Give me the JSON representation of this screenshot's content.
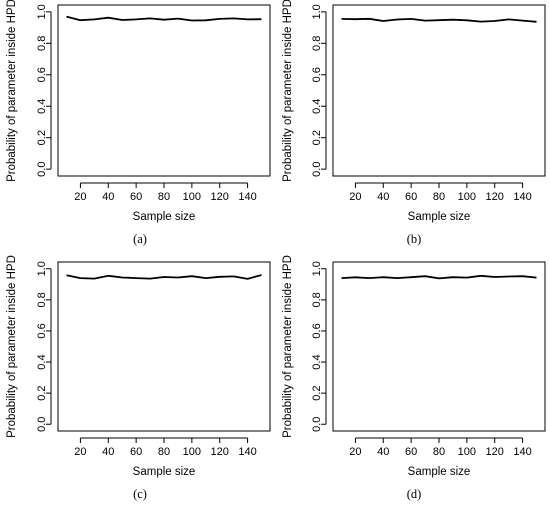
{
  "panels": [
    {
      "caption": "(a)",
      "chart_data": {
        "type": "line",
        "x": [
          10,
          20,
          30,
          40,
          50,
          60,
          70,
          80,
          90,
          100,
          110,
          120,
          130,
          140,
          150
        ],
        "series": [
          {
            "values": [
              0.97,
              0.947,
              0.952,
              0.963,
              0.948,
              0.952,
              0.958,
              0.95,
              0.957,
              0.945,
              0.946,
              0.955,
              0.958,
              0.952,
              0.953
            ]
          }
        ],
        "xlabel": "Sample size",
        "ylabel": "Probability of parameter inside HPD",
        "xticks": [
          20,
          40,
          60,
          80,
          100,
          120,
          140
        ],
        "yticks": [
          "0.0",
          "0.2",
          "0.4",
          "0.6",
          "0.8",
          "1.0"
        ],
        "xlim": [
          10,
          150
        ],
        "ylim": [
          0,
          1
        ],
        "grid": false
      }
    },
    {
      "caption": "(b)",
      "chart_data": {
        "type": "line",
        "x": [
          10,
          20,
          30,
          40,
          50,
          60,
          70,
          80,
          90,
          100,
          110,
          120,
          130,
          140,
          150
        ],
        "series": [
          {
            "values": [
              0.955,
              0.953,
              0.956,
              0.942,
              0.951,
              0.955,
              0.944,
              0.947,
              0.95,
              0.946,
              0.938,
              0.942,
              0.952,
              0.944,
              0.937
            ]
          }
        ],
        "xlabel": "Sample size",
        "ylabel": "Probability of parameter inside HPD",
        "xticks": [
          20,
          40,
          60,
          80,
          100,
          120,
          140
        ],
        "yticks": [
          "0.0",
          "0.2",
          "0.4",
          "0.6",
          "0.8",
          "1.0"
        ],
        "xlim": [
          10,
          150
        ],
        "ylim": [
          0,
          1
        ],
        "grid": false
      }
    },
    {
      "caption": "(c)",
      "chart_data": {
        "type": "line",
        "x": [
          10,
          20,
          30,
          40,
          50,
          60,
          70,
          80,
          90,
          100,
          110,
          120,
          130,
          140,
          150
        ],
        "series": [
          {
            "values": [
              0.958,
              0.94,
              0.937,
              0.955,
              0.944,
              0.94,
              0.937,
              0.947,
              0.944,
              0.952,
              0.94,
              0.948,
              0.951,
              0.935,
              0.96
            ]
          }
        ],
        "xlabel": "Sample size",
        "ylabel": "Probability of parameter inside HPD",
        "xticks": [
          20,
          40,
          60,
          80,
          100,
          120,
          140
        ],
        "yticks": [
          "0.0",
          "0.2",
          "0.4",
          "0.6",
          "0.8",
          "1.0"
        ],
        "xlim": [
          10,
          150
        ],
        "ylim": [
          0,
          1
        ],
        "grid": false
      }
    },
    {
      "caption": "(d)",
      "chart_data": {
        "type": "line",
        "x": [
          10,
          20,
          30,
          40,
          50,
          60,
          70,
          80,
          90,
          100,
          110,
          120,
          130,
          140,
          150
        ],
        "series": [
          {
            "values": [
              0.94,
              0.945,
              0.94,
              0.946,
              0.94,
              0.946,
              0.952,
              0.938,
              0.946,
              0.943,
              0.955,
              0.947,
              0.95,
              0.952,
              0.943
            ]
          }
        ],
        "xlabel": "Sample size",
        "ylabel": "Probability of parameter inside HPD",
        "xticks": [
          20,
          40,
          60,
          80,
          100,
          120,
          140
        ],
        "yticks": [
          "0.0",
          "0.2",
          "0.4",
          "0.6",
          "0.8",
          "1.0"
        ],
        "xlim": [
          10,
          150
        ],
        "ylim": [
          0,
          1
        ],
        "grid": false
      }
    }
  ]
}
